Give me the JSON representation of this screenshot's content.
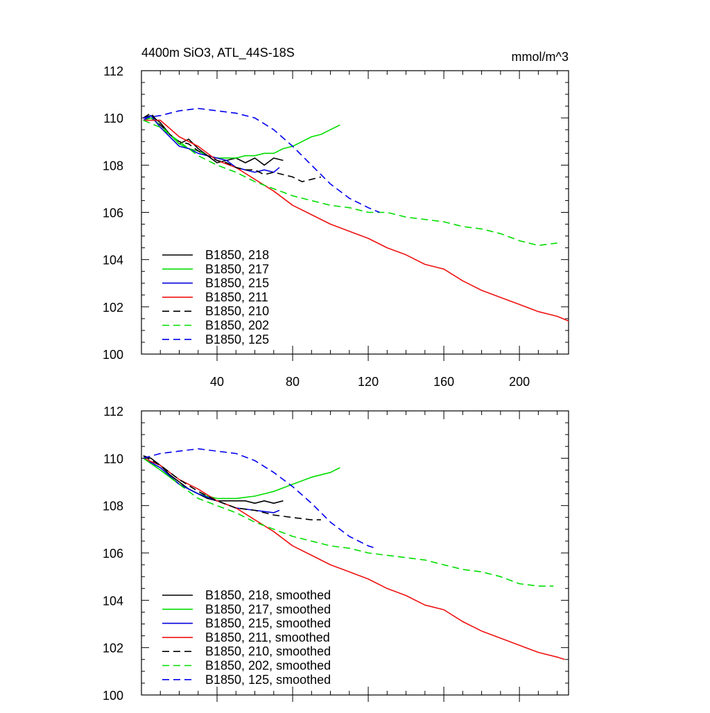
{
  "figure": {
    "title_left": "4400m SiO3, ATL_44S-18S",
    "title_right": "mmol/m^3"
  },
  "chart_data": [
    {
      "type": "line",
      "title": "4400m SiO3, ATL_44S-18S",
      "units_label": "mmol/m^3",
      "xlim": [
        0,
        226
      ],
      "ylim": [
        100,
        112
      ],
      "x_ticks": [
        40,
        80,
        120,
        160,
        200
      ],
      "x_tick_labels": [
        "40",
        "80",
        "120",
        "160",
        "200"
      ],
      "y_ticks": [
        100,
        102,
        104,
        106,
        108,
        110,
        112
      ],
      "y_tick_labels": [
        "100",
        "102",
        "104",
        "106",
        "108",
        "110",
        "112"
      ],
      "grid": false,
      "legend_position": "bottom-left",
      "series": [
        {
          "name": "B1850, 218",
          "color": "#000000",
          "dash": "solid",
          "x": [
            1,
            5,
            10,
            15,
            20,
            25,
            30,
            35,
            40,
            45,
            50,
            55,
            60,
            65,
            70,
            75
          ],
          "y": [
            110.0,
            110.1,
            109.8,
            109.3,
            108.9,
            109.1,
            108.7,
            108.4,
            108.1,
            108.2,
            108.3,
            108.1,
            108.3,
            108.0,
            108.3,
            108.2
          ]
        },
        {
          "name": "B1850, 217",
          "color": "#00dd00",
          "dash": "solid",
          "x": [
            1,
            5,
            10,
            15,
            20,
            25,
            30,
            35,
            40,
            45,
            50,
            55,
            60,
            65,
            70,
            75,
            80,
            85,
            90,
            95,
            100,
            105
          ],
          "y": [
            109.9,
            110.0,
            109.7,
            109.3,
            108.9,
            108.7,
            108.6,
            108.4,
            108.3,
            108.3,
            108.3,
            108.4,
            108.4,
            108.5,
            108.5,
            108.7,
            108.8,
            109.0,
            109.2,
            109.3,
            109.5,
            109.7
          ]
        },
        {
          "name": "B1850, 215",
          "color": "#0000dd",
          "dash": "solid",
          "x": [
            1,
            5,
            10,
            15,
            20,
            25,
            30,
            35,
            40,
            45,
            50,
            55,
            60,
            65,
            70,
            73
          ],
          "y": [
            109.9,
            110.1,
            109.6,
            109.2,
            108.8,
            108.7,
            108.5,
            108.4,
            108.3,
            108.2,
            107.9,
            107.8,
            107.7,
            107.8,
            107.7,
            107.9
          ]
        },
        {
          "name": "B1850, 211",
          "color": "#ee1111",
          "dash": "solid",
          "x": [
            1,
            10,
            20,
            30,
            40,
            50,
            60,
            70,
            80,
            90,
            100,
            110,
            120,
            130,
            140,
            150,
            160,
            170,
            180,
            190,
            200,
            210,
            220,
            226
          ],
          "y": [
            109.9,
            109.9,
            109.2,
            108.8,
            108.2,
            107.9,
            107.4,
            106.9,
            106.3,
            105.9,
            105.5,
            105.2,
            104.9,
            104.5,
            104.2,
            103.8,
            103.6,
            103.1,
            102.7,
            102.4,
            102.1,
            101.8,
            101.6,
            101.4
          ]
        },
        {
          "name": "B1850, 210",
          "color": "#000000",
          "dash": "dashed",
          "x": [
            1,
            5,
            10,
            15,
            20,
            25,
            30,
            35,
            40,
            45,
            50,
            55,
            60,
            65,
            70,
            75,
            80,
            85,
            90,
            95
          ],
          "y": [
            110.0,
            110.2,
            109.7,
            109.3,
            109.0,
            108.9,
            108.6,
            108.4,
            108.2,
            108.1,
            107.9,
            107.8,
            107.8,
            107.6,
            107.7,
            107.6,
            107.5,
            107.3,
            107.4,
            107.5
          ]
        },
        {
          "name": "B1850, 202",
          "color": "#00dd00",
          "dash": "dashed",
          "x": [
            1,
            10,
            20,
            30,
            40,
            50,
            60,
            70,
            80,
            90,
            100,
            110,
            120,
            130,
            140,
            150,
            160,
            170,
            180,
            190,
            200,
            210,
            220
          ],
          "y": [
            109.9,
            109.6,
            109.0,
            108.4,
            108.0,
            107.7,
            107.3,
            107.0,
            106.7,
            106.5,
            106.3,
            106.2,
            106.0,
            106.0,
            105.8,
            105.7,
            105.6,
            105.4,
            105.3,
            105.1,
            104.8,
            104.6,
            104.7
          ]
        },
        {
          "name": "B1850, 125",
          "color": "#0000ee",
          "dash": "dashed",
          "x": [
            1,
            10,
            20,
            30,
            40,
            50,
            60,
            70,
            80,
            90,
            100,
            110,
            120,
            126
          ],
          "y": [
            110.0,
            110.1,
            110.3,
            110.4,
            110.3,
            110.2,
            110.0,
            109.5,
            108.8,
            108.0,
            107.2,
            106.6,
            106.2,
            106.0
          ]
        }
      ]
    },
    {
      "type": "line",
      "xlim": [
        0,
        226
      ],
      "ylim": [
        100,
        112
      ],
      "x_ticks": [
        40,
        80,
        120,
        160,
        200
      ],
      "y_ticks": [
        100,
        102,
        104,
        106,
        108,
        110,
        112
      ],
      "y_tick_labels": [
        "100",
        "102",
        "104",
        "106",
        "108",
        "110",
        "112"
      ],
      "grid": false,
      "legend_position": "bottom-left",
      "series": [
        {
          "name": "B1850, 218, smoothed",
          "color": "#000000",
          "dash": "solid",
          "x": [
            1,
            5,
            10,
            15,
            20,
            25,
            30,
            35,
            40,
            45,
            50,
            55,
            60,
            65,
            70,
            75
          ],
          "y": [
            110.1,
            110.0,
            109.7,
            109.3,
            109.0,
            108.7,
            108.5,
            108.3,
            108.2,
            108.2,
            108.2,
            108.2,
            108.1,
            108.2,
            108.1,
            108.2
          ]
        },
        {
          "name": "B1850, 217, smoothed",
          "color": "#00dd00",
          "dash": "solid",
          "x": [
            1,
            10,
            20,
            30,
            40,
            50,
            60,
            70,
            80,
            90,
            100,
            105
          ],
          "y": [
            110.0,
            109.5,
            108.9,
            108.5,
            108.3,
            108.3,
            108.4,
            108.6,
            108.9,
            109.2,
            109.4,
            109.6
          ]
        },
        {
          "name": "B1850, 215, smoothed",
          "color": "#0000dd",
          "dash": "solid",
          "x": [
            1,
            10,
            20,
            30,
            40,
            50,
            60,
            70,
            73
          ],
          "y": [
            110.0,
            109.6,
            108.9,
            108.5,
            108.2,
            107.9,
            107.8,
            107.7,
            107.8
          ]
        },
        {
          "name": "B1850, 211, smoothed",
          "color": "#ee1111",
          "dash": "solid",
          "x": [
            1,
            10,
            20,
            30,
            40,
            50,
            60,
            70,
            80,
            90,
            100,
            110,
            120,
            130,
            140,
            150,
            160,
            170,
            180,
            190,
            200,
            210,
            220,
            224
          ],
          "y": [
            110.0,
            109.7,
            109.1,
            108.7,
            108.2,
            107.9,
            107.4,
            106.9,
            106.3,
            105.9,
            105.5,
            105.2,
            104.9,
            104.5,
            104.2,
            103.8,
            103.6,
            103.1,
            102.7,
            102.4,
            102.1,
            101.8,
            101.6,
            101.5
          ]
        },
        {
          "name": "B1850, 210, smoothed",
          "color": "#000000",
          "dash": "dashed",
          "x": [
            1,
            10,
            20,
            30,
            40,
            50,
            60,
            70,
            80,
            90,
            95
          ],
          "y": [
            110.1,
            109.7,
            109.1,
            108.6,
            108.2,
            107.9,
            107.8,
            107.6,
            107.5,
            107.4,
            107.4
          ]
        },
        {
          "name": "B1850, 202, smoothed",
          "color": "#00dd00",
          "dash": "dashed",
          "x": [
            1,
            10,
            20,
            30,
            40,
            50,
            60,
            70,
            80,
            90,
            100,
            110,
            120,
            130,
            140,
            150,
            160,
            170,
            180,
            190,
            200,
            210,
            218
          ],
          "y": [
            110.0,
            109.5,
            108.9,
            108.3,
            108.0,
            107.7,
            107.3,
            107.0,
            106.7,
            106.5,
            106.3,
            106.2,
            106.0,
            105.9,
            105.8,
            105.7,
            105.5,
            105.3,
            105.2,
            105.0,
            104.7,
            104.6,
            104.6
          ]
        },
        {
          "name": "B1850, 125, smoothed",
          "color": "#0000ee",
          "dash": "dashed",
          "x": [
            1,
            10,
            20,
            30,
            40,
            50,
            60,
            70,
            80,
            90,
            100,
            110,
            120,
            124
          ],
          "y": [
            110.0,
            110.2,
            110.3,
            110.4,
            110.3,
            110.2,
            109.9,
            109.4,
            108.8,
            108.1,
            107.3,
            106.7,
            106.3,
            106.2
          ]
        }
      ]
    }
  ]
}
